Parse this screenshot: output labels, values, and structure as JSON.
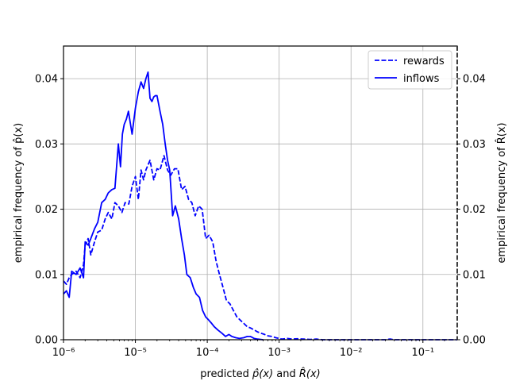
{
  "chart_data": {
    "type": "line",
    "xscale": "log",
    "xlim": [
      1e-06,
      0.3
    ],
    "ylim": [
      0,
      0.045
    ],
    "grid": true,
    "legend_position": "top-right",
    "x_ticks": [
      {
        "value": 1e-06,
        "label": "10⁻⁶"
      },
      {
        "value": 1e-05,
        "label": "10⁻⁵"
      },
      {
        "value": 0.0001,
        "label": "10⁻⁴"
      },
      {
        "value": 0.001,
        "label": "10⁻³"
      },
      {
        "value": 0.01,
        "label": "10⁻²"
      },
      {
        "value": 0.1,
        "label": "10⁻¹"
      }
    ],
    "y_ticks": [
      {
        "value": 0,
        "label": "0.00"
      },
      {
        "value": 0.01,
        "label": "0.01"
      },
      {
        "value": 0.02,
        "label": "0.02"
      },
      {
        "value": 0.03,
        "label": "0.03"
      },
      {
        "value": 0.04,
        "label": "0.04"
      }
    ],
    "xlabel_parts": [
      "predicted ",
      "p̂(x)",
      " and ",
      "R̂(x)"
    ],
    "ylabel_left": "empirical frequency of p̂(x)",
    "ylabel_right": "empirical frequency of R̂(x)",
    "series": [
      {
        "name": "rewards",
        "color": "#0000ff",
        "dash": true,
        "x": [
          1e-06,
          1.1e-06,
          1.2e-06,
          1.3e-06,
          1.5e-06,
          1.7e-06,
          1.9e-06,
          2e-06,
          2.2e-06,
          2.4e-06,
          2.7e-06,
          3e-06,
          3.4e-06,
          3.8e-06,
          4.2e-06,
          4.7e-06,
          5.2e-06,
          5.8e-06,
          6.5e-06,
          7.2e-06,
          8.1e-06,
          9e-06,
          1e-05,
          1.1e-05,
          1.2e-05,
          1.3e-05,
          1.4e-05,
          1.6e-05,
          1.8e-05,
          2e-05,
          2.2e-05,
          2.5e-05,
          2.8e-05,
          3.1e-05,
          3.5e-05,
          3.9e-05,
          4.4e-05,
          4.9e-05,
          5.5e-05,
          6.1e-05,
          6.8e-05,
          7.6e-05,
          8.5e-05,
          9.5e-05,
          0.000106,
          0.000119,
          0.000133,
          0.000148,
          0.000166,
          0.000185,
          0.000207,
          0.000231,
          0.000258,
          0.000288,
          0.000322,
          0.00036,
          0.0004,
          0.00045,
          0.0005,
          0.00056,
          0.00063,
          0.0007,
          0.0008,
          0.0009,
          0.001,
          0.0011,
          0.0013,
          0.0015,
          0.0018,
          0.0022,
          0.0027,
          0.0033,
          0.004,
          0.01,
          0.03,
          0.035,
          0.04,
          0.1,
          0.3
        ],
        "y": [
          0.009,
          0.0085,
          0.0095,
          0.01,
          0.0105,
          0.0095,
          0.0115,
          0.0145,
          0.0155,
          0.013,
          0.015,
          0.0165,
          0.0168,
          0.0185,
          0.0195,
          0.0185,
          0.021,
          0.0205,
          0.0195,
          0.021,
          0.0208,
          0.0235,
          0.025,
          0.0215,
          0.026,
          0.0245,
          0.026,
          0.0275,
          0.0245,
          0.0262,
          0.026,
          0.0282,
          0.026,
          0.0252,
          0.0262,
          0.0262,
          0.023,
          0.0235,
          0.0215,
          0.021,
          0.019,
          0.0205,
          0.02,
          0.0155,
          0.016,
          0.015,
          0.012,
          0.01,
          0.008,
          0.006,
          0.0055,
          0.0045,
          0.0035,
          0.003,
          0.0025,
          0.002,
          0.0018,
          0.0015,
          0.0012,
          0.001,
          0.0008,
          0.0006,
          0.0005,
          0.0003,
          0.0002,
          0.0001,
          0.0002,
          0.0001,
          0.00015,
          0.0001,
          5e-05,
          0.0001,
          0,
          0,
          0,
          0.0001,
          0,
          0,
          0
        ]
      },
      {
        "name": "inflows",
        "color": "#0000ff",
        "dash": false,
        "x": [
          1e-06,
          1.1e-06,
          1.2e-06,
          1.3e-06,
          1.5e-06,
          1.7e-06,
          1.9e-06,
          2e-06,
          2.2e-06,
          2.4e-06,
          2.7e-06,
          3e-06,
          3.4e-06,
          3.8e-06,
          4.2e-06,
          4.7e-06,
          5.2e-06,
          5.8e-06,
          6.2e-06,
          6.6e-06,
          7e-06,
          7.5e-06,
          8e-06,
          9e-06,
          1e-05,
          1.1e-05,
          1.2e-05,
          1.3e-05,
          1.4e-05,
          1.5e-05,
          1.6e-05,
          1.7e-05,
          1.8e-05,
          1.9e-05,
          2e-05,
          2.2e-05,
          2.4e-05,
          2.6e-05,
          2.8e-05,
          3e-05,
          3.3e-05,
          3.6e-05,
          4e-05,
          4.4e-05,
          4.8e-05,
          5.2e-05,
          5.8e-05,
          6.4e-05,
          7e-05,
          7.8e-05,
          8.6e-05,
          9.5e-05,
          0.000105,
          0.000115,
          0.000125,
          0.00014,
          0.00016,
          0.00018,
          0.0002,
          0.00022,
          0.00025,
          0.00028,
          0.00032,
          0.00036,
          0.0004,
          0.00045,
          0.0005,
          0.0006
        ],
        "y": [
          0.007,
          0.0075,
          0.0065,
          0.0105,
          0.01,
          0.011,
          0.0095,
          0.015,
          0.0145,
          0.0155,
          0.017,
          0.018,
          0.021,
          0.0215,
          0.0225,
          0.023,
          0.0232,
          0.03,
          0.0265,
          0.0315,
          0.033,
          0.0338,
          0.035,
          0.0315,
          0.0355,
          0.038,
          0.0395,
          0.0385,
          0.04,
          0.041,
          0.037,
          0.0365,
          0.0372,
          0.0374,
          0.0374,
          0.035,
          0.033,
          0.03,
          0.0275,
          0.026,
          0.019,
          0.0205,
          0.0185,
          0.0155,
          0.013,
          0.01,
          0.0095,
          0.008,
          0.007,
          0.0065,
          0.0045,
          0.0035,
          0.003,
          0.0025,
          0.002,
          0.0015,
          0.001,
          0.0005,
          0.0008,
          0.0005,
          0.0003,
          0.0002,
          0.0003,
          0.0005,
          0.0005,
          0.0002,
          0.0001,
          0
        ]
      }
    ]
  }
}
